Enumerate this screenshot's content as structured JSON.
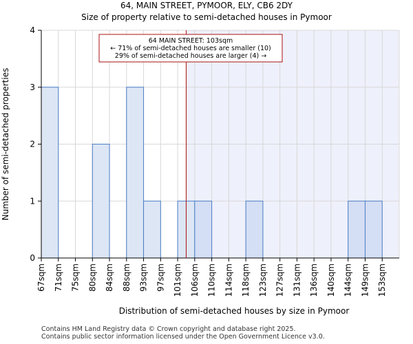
{
  "header": {
    "title": "64, MAIN STREET, PYMOOR, ELY, CB6 2DY",
    "subtitle": "Size of property relative to semi-detached houses in Pymoor"
  },
  "chart_data": {
    "type": "bar",
    "categories": [
      "67sqm",
      "71sqm",
      "75sqm",
      "80sqm",
      "84sqm",
      "88sqm",
      "93sqm",
      "97sqm",
      "101sqm",
      "106sqm",
      "110sqm",
      "114sqm",
      "118sqm",
      "123sqm",
      "127sqm",
      "131sqm",
      "136sqm",
      "140sqm",
      "144sqm",
      "149sqm",
      "153sqm"
    ],
    "values": [
      3,
      0,
      0,
      2,
      0,
      3,
      1,
      0,
      1,
      1,
      0,
      0,
      1,
      0,
      0,
      0,
      0,
      0,
      1,
      1,
      0
    ],
    "xlabel": "Distribution of semi-detached houses by size in Pymoor",
    "ylabel": "Number of semi-detached properties",
    "ylim": [
      0,
      4
    ],
    "yticks": [
      0,
      1,
      2,
      3,
      4
    ],
    "grid": true,
    "marker": {
      "value_sqm": 103,
      "category_position": 8.5
    },
    "annotation": {
      "line1": "64 MAIN STREET: 103sqm",
      "line2": "← 71% of semi-detached houses are smaller (10)",
      "line3": "29% of semi-detached houses are larger (4) →"
    },
    "colors": {
      "bar_left": "#dce6f5",
      "bar_right": "#d4def4",
      "bar_edge": "#4a7dc4",
      "highlight_region": "#eef0fb",
      "marker_line": "#aa1111",
      "annotation_border": "#aa1111",
      "grid": "#d8d8d8"
    }
  },
  "footer": {
    "line1": "Contains HM Land Registry data © Crown copyright and database right 2025.",
    "line2": "Contains public sector information licensed under the Open Government Licence v3.0."
  }
}
